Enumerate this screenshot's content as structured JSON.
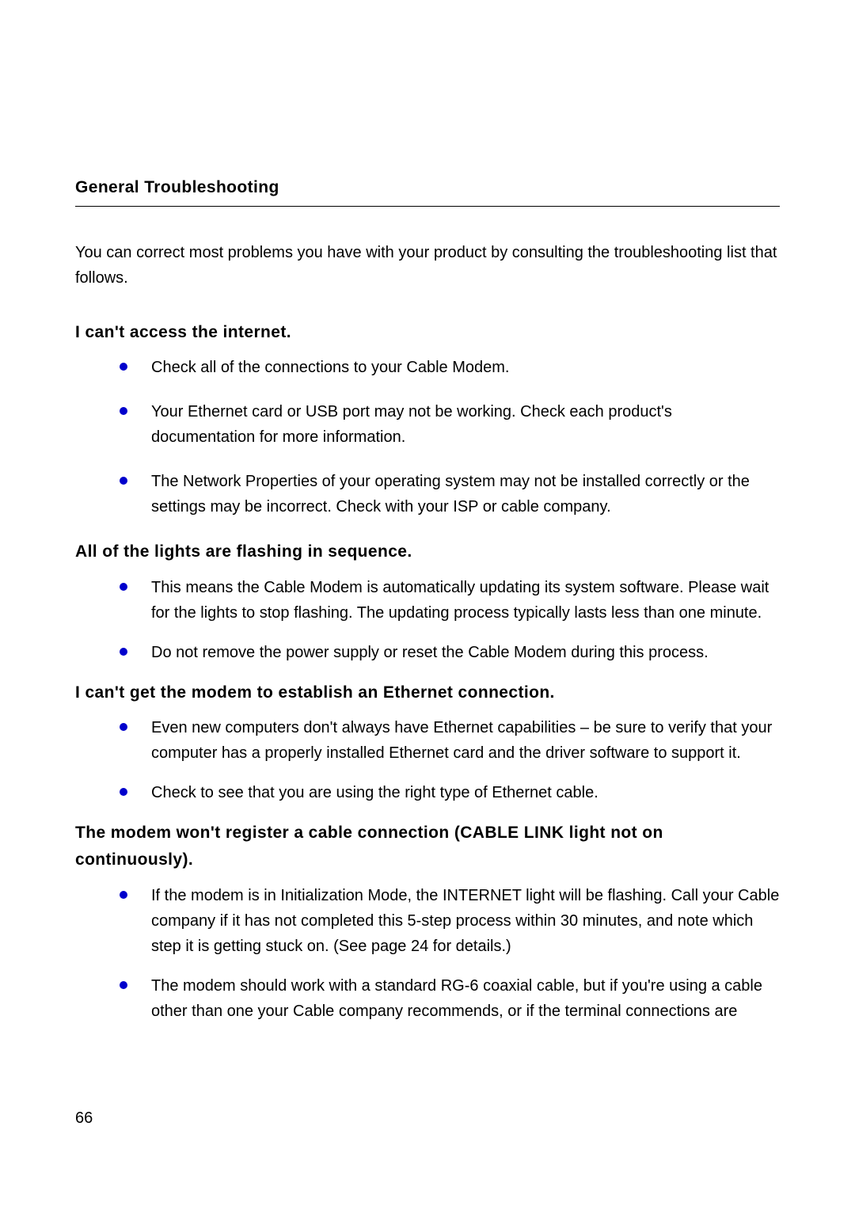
{
  "page": {
    "number": "66",
    "font_size_body": 20,
    "font_size_heading": 21,
    "bullet_color": "#0000cc",
    "text_color": "#000000",
    "background_color": "#ffffff",
    "border_color": "#000000"
  },
  "heading": "General Troubleshooting",
  "intro": "You can correct most problems you have with your product by consulting the troubleshooting list that follows.",
  "sections": [
    {
      "title": "I can't access the internet.",
      "bullets": [
        "Check all of the connections to your Cable Modem.",
        "Your Ethernet card or USB port may not be working. Check each product's documentation for more information.",
        "The Network Properties of your operating system may not be installed correctly or the settings may be incorrect. Check with your ISP or cable company."
      ]
    },
    {
      "title": "All of the lights are flashing in sequence.",
      "bullets": [
        "This means the Cable Modem is automatically updating its system software. Please wait for the lights to stop flashing. The updating process typically lasts less than one minute.",
        "Do not remove the power supply or reset the Cable Modem during this process."
      ]
    },
    {
      "title": "I can't get the modem to establish an Ethernet connection.",
      "bullets": [
        "Even new computers don't always have Ethernet capabilities – be sure to verify that your computer has a properly installed Ethernet card and the driver software to support it.",
        "Check to see that you are using the right type of Ethernet cable."
      ]
    },
    {
      "title": "The modem won't register a cable connection (CABLE LINK light not on continuously).",
      "bullets": [
        "If the modem is in Initialization Mode, the INTERNET light will be flashing. Call your Cable company if it has not completed this 5-step process within 30 minutes, and note which step it is getting stuck on. (See page 24 for details.)",
        "The modem should work with a standard RG-6 coaxial cable, but if you're using a cable other than one your Cable company recommends, or if the terminal connections are"
      ]
    }
  ]
}
